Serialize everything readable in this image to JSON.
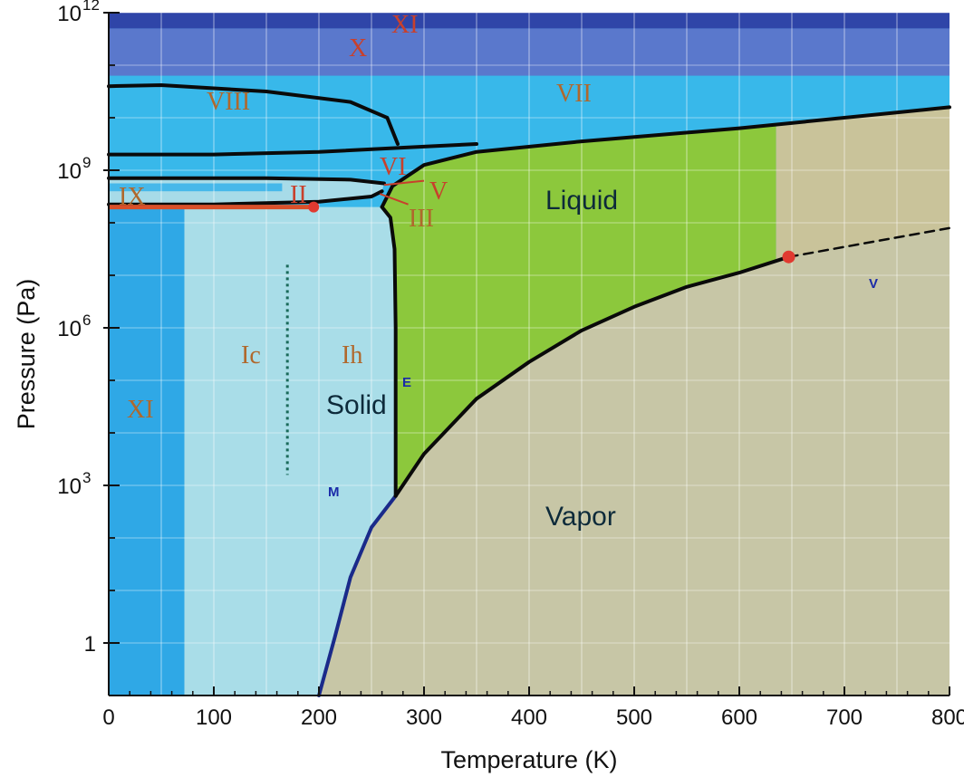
{
  "chart_data": {
    "type": "area",
    "xlabel": "Temperature (K)",
    "ylabel": "Pressure (Pa)",
    "xlim": [
      0,
      800
    ],
    "ylim_log10": [
      -1,
      12
    ],
    "y_scale": "log",
    "grid": true,
    "x_ticks": [
      "0",
      "100",
      "200",
      "300",
      "400",
      "500",
      "600",
      "700",
      "800"
    ],
    "y_ticks": [
      {
        "base": "10",
        "exp": "12",
        "log10": 12
      },
      {
        "base": "10",
        "exp": "9",
        "log10": 9
      },
      {
        "base": "10",
        "exp": "6",
        "log10": 6
      },
      {
        "base": "10",
        "exp": "3",
        "log10": 3
      },
      {
        "base": "1",
        "exp": "",
        "log10": 0
      }
    ],
    "regions": [
      {
        "label": "Solid",
        "color": "#a9dde8"
      },
      {
        "label": "Liquid",
        "color": "#8cc83c"
      },
      {
        "label": "Vapor",
        "color": "#c7c6a6"
      }
    ],
    "phase_labels": [
      "XI",
      "X",
      "VIII",
      "VII",
      "VI",
      "V",
      "IX",
      "II",
      "III",
      "Ic",
      "Ih",
      "XI"
    ],
    "point_labels": [
      "E",
      "M",
      "V"
    ],
    "boundaries": {
      "sublimation": [
        [
          200,
          -1
        ],
        [
          215,
          0.1
        ],
        [
          230,
          1.25
        ],
        [
          250,
          2.2
        ],
        [
          273,
          2.8
        ]
      ],
      "vaporization": [
        [
          273,
          2.8
        ],
        [
          300,
          3.6
        ],
        [
          350,
          4.65
        ],
        [
          400,
          5.35
        ],
        [
          450,
          5.95
        ],
        [
          500,
          6.4
        ],
        [
          550,
          6.78
        ],
        [
          600,
          7.05
        ],
        [
          647,
          7.35
        ]
      ],
      "supercritical_dashed": [
        [
          647,
          7.35
        ],
        [
          800,
          7.9
        ]
      ],
      "melting_Ih": [
        [
          273,
          2.8
        ],
        [
          273,
          6
        ],
        [
          272,
          7.5
        ],
        [
          268,
          8.1
        ],
        [
          260,
          8.3
        ]
      ],
      "melting_high": [
        [
          260,
          8.3
        ],
        [
          270,
          8.7
        ],
        [
          300,
          9.1
        ],
        [
          350,
          9.35
        ],
        [
          450,
          9.55
        ],
        [
          600,
          9.8
        ],
        [
          800,
          10.2
        ]
      ],
      "VII_boundary": [
        [
          0,
          9.3
        ],
        [
          100,
          9.3
        ],
        [
          200,
          9.35
        ],
        [
          300,
          9.45
        ],
        [
          350,
          9.5
        ]
      ],
      "VIII_boundary": [
        [
          0,
          10.6
        ],
        [
          50,
          10.62
        ],
        [
          150,
          10.5
        ],
        [
          230,
          10.3
        ],
        [
          265,
          10.0
        ],
        [
          275,
          9.5
        ]
      ],
      "II_top": [
        [
          0,
          8.85
        ],
        [
          150,
          8.85
        ],
        [
          230,
          8.82
        ],
        [
          262,
          8.75
        ]
      ],
      "II_bottom": [
        [
          0,
          8.35
        ],
        [
          100,
          8.35
        ],
        [
          200,
          8.4
        ],
        [
          250,
          8.5
        ],
        [
          260,
          8.6
        ]
      ]
    },
    "critical_point": {
      "x": 647,
      "log10_y": 7.35
    },
    "triple_point_II": {
      "x": 195,
      "log10_y": 8.3
    }
  }
}
